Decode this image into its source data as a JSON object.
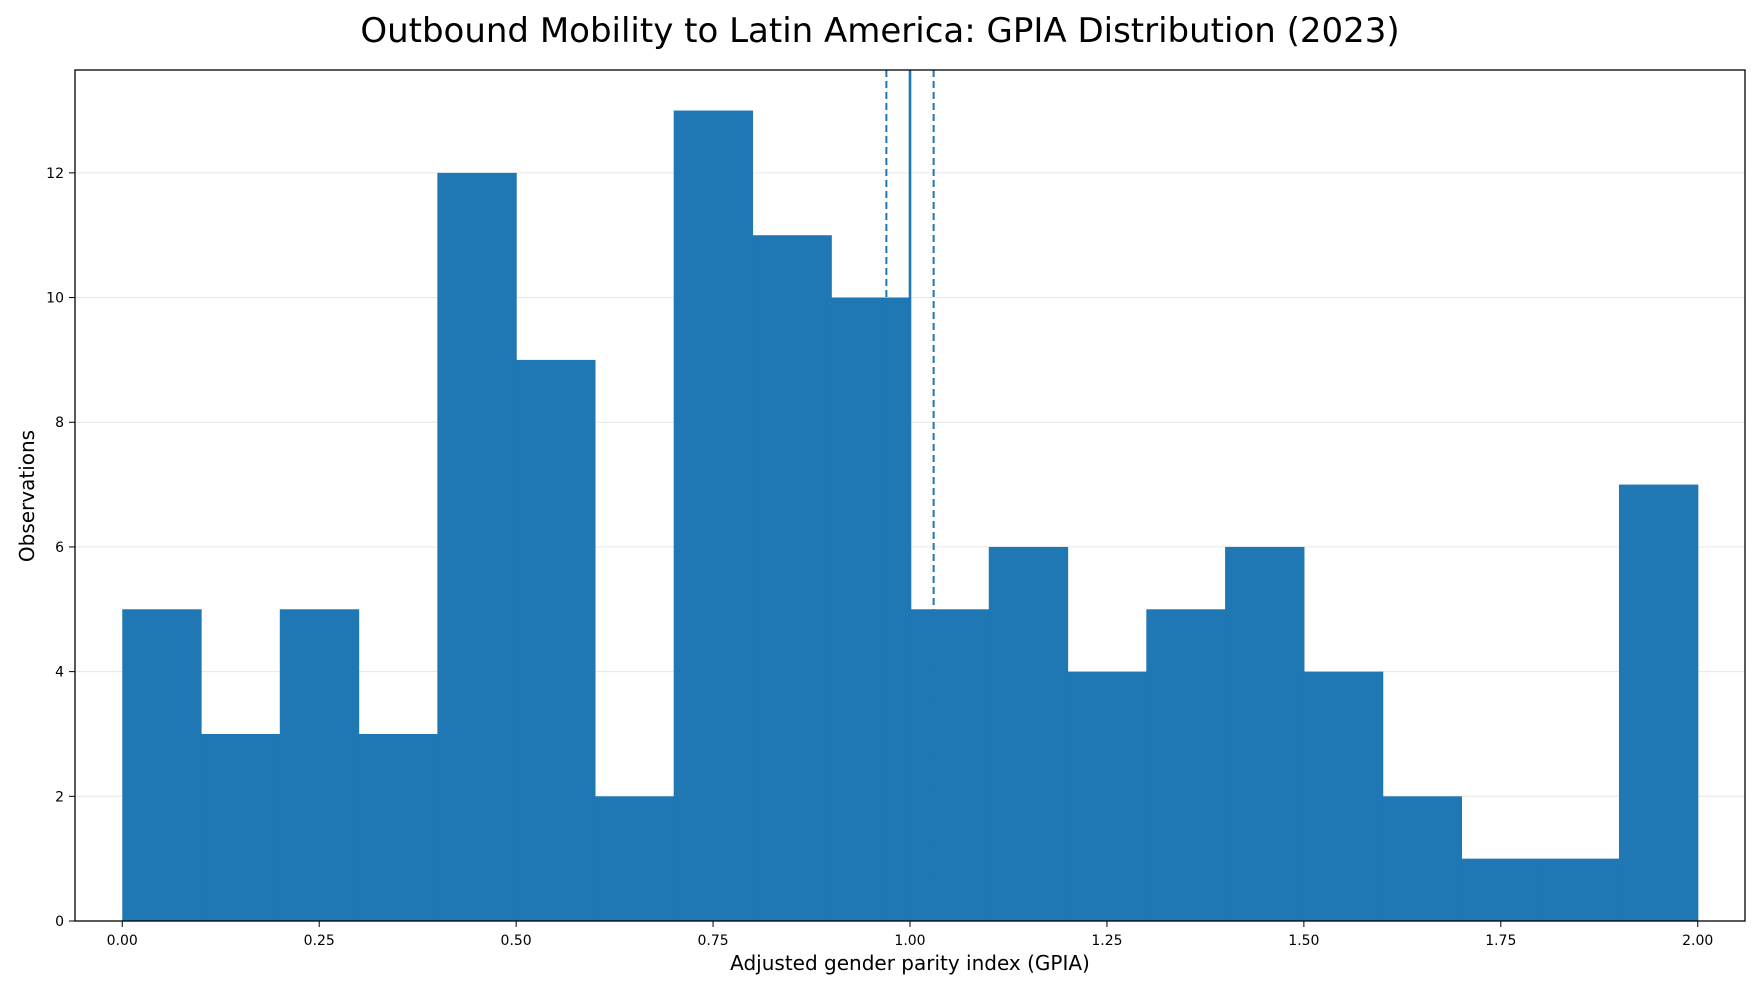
{
  "chart_data": {
    "type": "bar",
    "title": "Outbound Mobility to Latin America: GPIA Distribution (2023)",
    "xlabel": "Adjusted gender parity index (GPIA)",
    "ylabel": "Observations",
    "bin_edges": [
      0.0,
      0.1,
      0.2,
      0.3,
      0.4,
      0.5,
      0.6,
      0.7,
      0.8,
      0.9,
      1.0,
      1.1,
      1.2,
      1.3,
      1.4,
      1.5,
      1.6,
      1.7,
      1.8,
      1.9,
      2.0
    ],
    "values": [
      5,
      3,
      5,
      3,
      12,
      9,
      2,
      13,
      11,
      10,
      5,
      6,
      4,
      5,
      6,
      4,
      2,
      1,
      1,
      7
    ],
    "xlim": [
      -0.06,
      2.06
    ],
    "ylim": [
      0,
      13.65
    ],
    "x_ticks": [
      0.0,
      0.25,
      0.5,
      0.75,
      1.0,
      1.25,
      1.5,
      1.75,
      2.0
    ],
    "x_tick_labels": [
      "0.00",
      "0.25",
      "0.50",
      "0.75",
      "1.00",
      "1.25",
      "1.50",
      "1.75",
      "2.00"
    ],
    "y_ticks": [
      0,
      2,
      4,
      6,
      8,
      10,
      12
    ],
    "y_tick_labels": [
      "0",
      "2",
      "4",
      "6",
      "8",
      "10",
      "12"
    ],
    "grid": "y",
    "reference_lines": [
      {
        "x": 1.0,
        "style": "solid"
      },
      {
        "x": 0.97,
        "style": "dashed"
      },
      {
        "x": 1.03,
        "style": "dashed"
      }
    ],
    "colors": {
      "bar": "#1f77b4",
      "line": "#1f77b4",
      "grid": "#e6e6e6",
      "axis": "#000000"
    }
  }
}
